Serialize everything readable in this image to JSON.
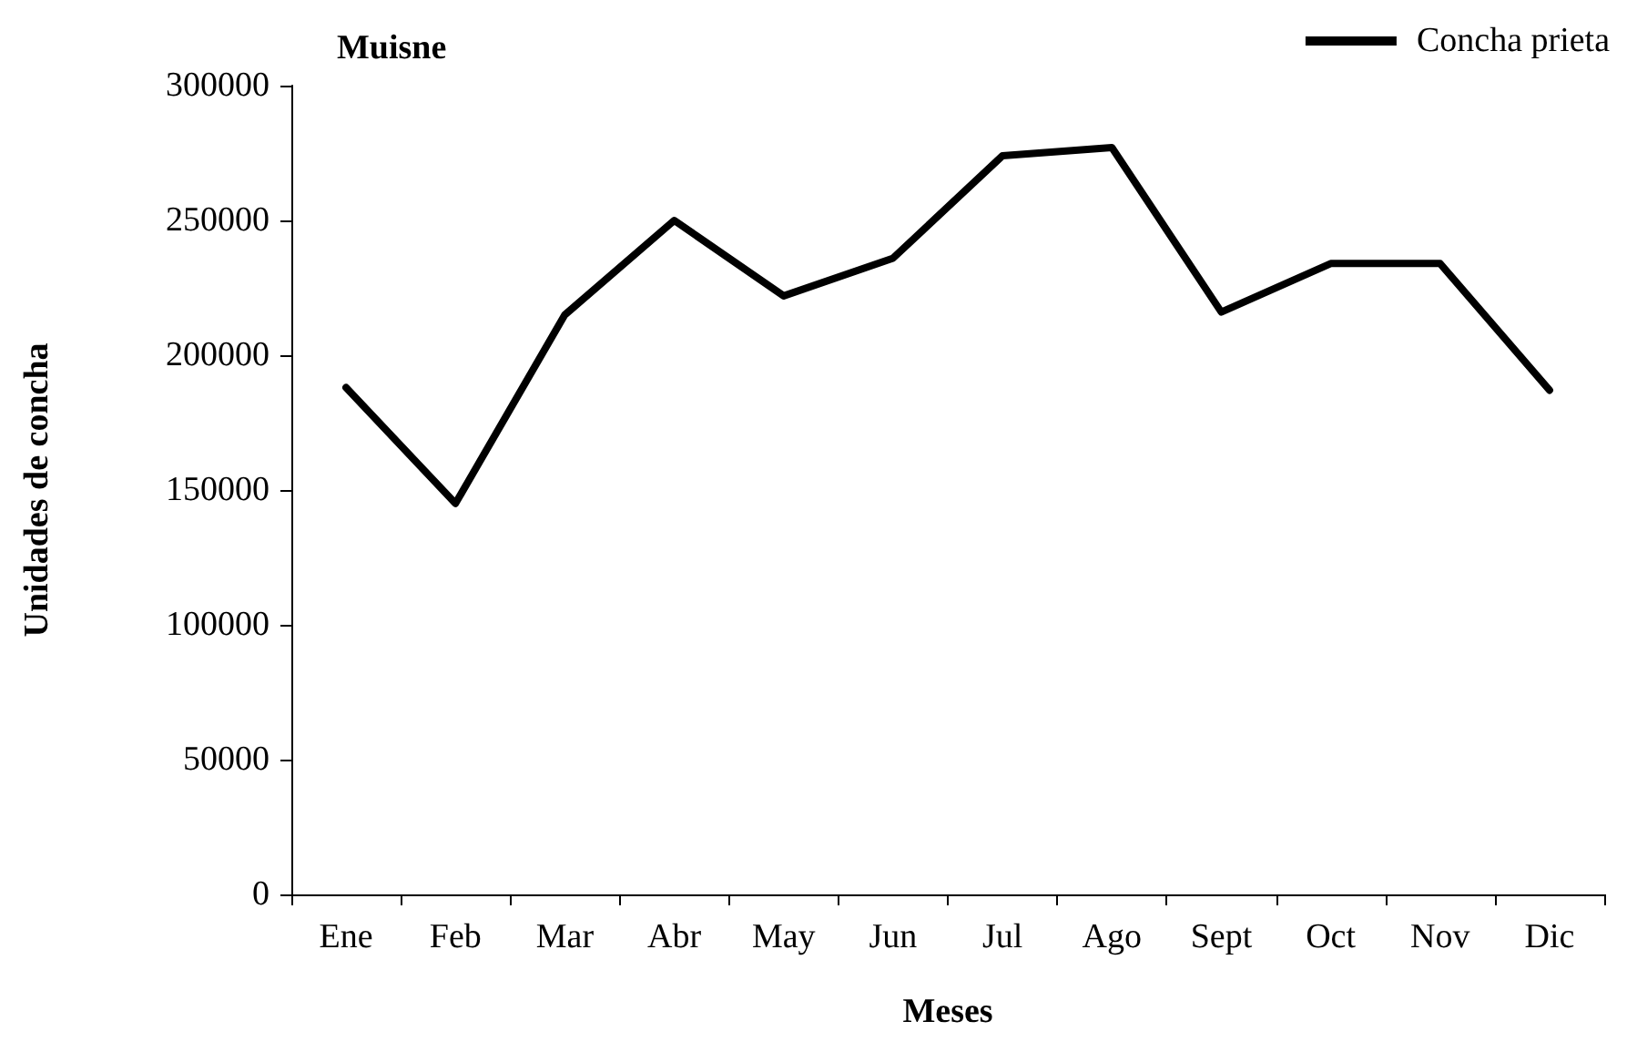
{
  "chart_data": {
    "type": "line",
    "title": "Muisne",
    "xlabel": "Meses",
    "ylabel": "Unidades de concha",
    "categories": [
      "Ene",
      "Feb",
      "Mar",
      "Abr",
      "May",
      "Jun",
      "Jul",
      "Ago",
      "Sept",
      "Oct",
      "Nov",
      "Dic"
    ],
    "series": [
      {
        "name": "Concha prieta",
        "color": "#000000",
        "values": [
          188000,
          145000,
          215000,
          250000,
          222000,
          236000,
          274000,
          277000,
          216000,
          234000,
          234000,
          187000
        ]
      }
    ],
    "ylim": [
      0,
      300000
    ],
    "yticks": [
      0,
      50000,
      100000,
      150000,
      200000,
      250000,
      300000
    ],
    "grid": false,
    "legend": "top right",
    "marker": "none",
    "line_style": "solid"
  }
}
